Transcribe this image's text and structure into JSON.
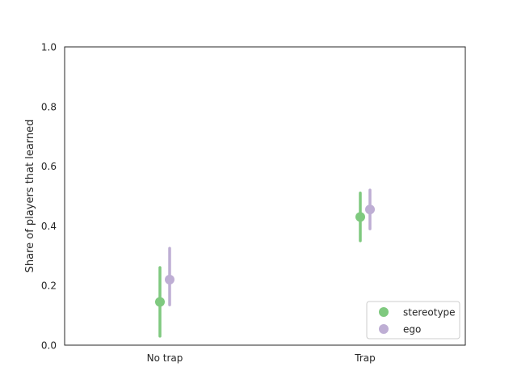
{
  "chart_data": {
    "type": "pointplot",
    "title": "",
    "xlabel": "",
    "ylabel": "Share of players that learned",
    "categories": [
      "No trap",
      "Trap"
    ],
    "ylim": [
      0,
      1
    ],
    "yticks": [
      "0.0",
      "0.2",
      "0.4",
      "0.6",
      "0.8",
      "1.0"
    ],
    "grid": false,
    "legend_position": "lower-right",
    "series": [
      {
        "name": "stereotype",
        "color": "#7fc97f",
        "values": [
          0.145,
          0.43
        ],
        "ci_low": [
          0.03,
          0.35
        ],
        "ci_high": [
          0.26,
          0.51
        ]
      },
      {
        "name": "ego",
        "color": "#beaed4",
        "values": [
          0.22,
          0.455
        ],
        "ci_low": [
          0.135,
          0.39
        ],
        "ci_high": [
          0.325,
          0.52
        ]
      }
    ]
  }
}
